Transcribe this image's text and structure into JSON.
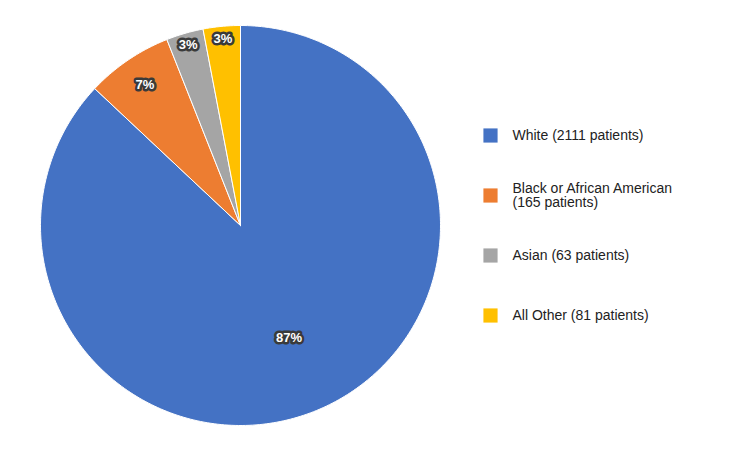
{
  "chart_data": {
    "type": "pie",
    "categories": [
      "White (2111 patients)",
      "Black or African American\n(165 patients)",
      "Asian (63 patients)",
      "All Other (81 patients)"
    ],
    "values": [
      87,
      7,
      3,
      3
    ],
    "value_labels": [
      "87%",
      "7%",
      "3%",
      "3%"
    ],
    "colors": [
      "#4472C4",
      "#ED7D31",
      "#A5A5A5",
      "#FFC000"
    ],
    "data_labels": true,
    "legend": "right",
    "tick_labels": false
  }
}
